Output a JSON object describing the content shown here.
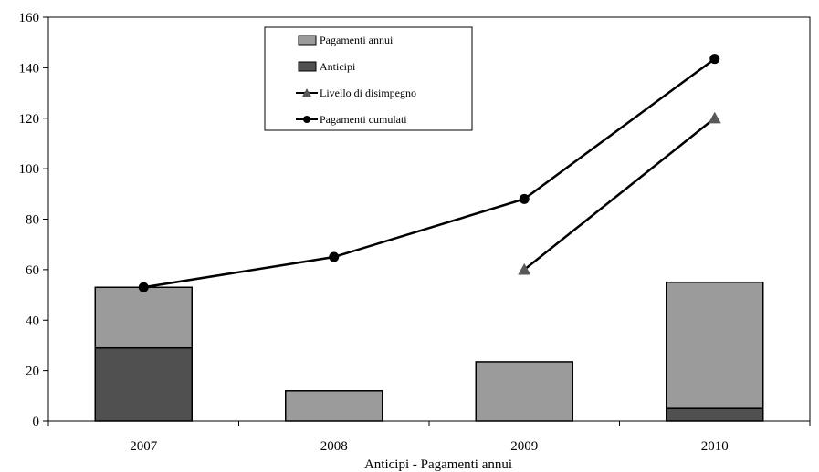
{
  "chart_data": {
    "type": "bar",
    "xlabel": "Anticipi  - Pagamenti annui",
    "ylabel": "",
    "ylim": [
      0,
      160
    ],
    "yticks": [
      0,
      20,
      40,
      60,
      80,
      100,
      120,
      140,
      160
    ],
    "categories": [
      "2007",
      "2008",
      "2009",
      "2010"
    ],
    "stacked_bars": [
      {
        "name": "Anticipi",
        "color": "#505050",
        "values": [
          29,
          0,
          0,
          5
        ]
      },
      {
        "name": "Pagamenti annui",
        "color": "#9b9b9b",
        "values": [
          24,
          12,
          23.5,
          50
        ]
      }
    ],
    "lines": [
      {
        "name": "Livello di disimpegno",
        "marker": "triangle",
        "color": "#000000",
        "marker_color": "#595959",
        "values": [
          null,
          null,
          60,
          120
        ]
      },
      {
        "name": "Pagamenti cumulati",
        "marker": "circle",
        "color": "#000000",
        "marker_color": "#000000",
        "values": [
          53,
          65,
          88,
          143.5
        ]
      }
    ],
    "legend": {
      "placement": "top-center",
      "entries": [
        {
          "label": "Pagamenti annui",
          "kind": "box",
          "color": "#9b9b9b"
        },
        {
          "label": "Anticipi",
          "kind": "box",
          "color": "#505050"
        },
        {
          "label": "Livello di disimpegno",
          "kind": "line-triangle",
          "color": "#000000"
        },
        {
          "label": "Pagamenti cumulati",
          "kind": "line-circle",
          "color": "#000000"
        }
      ]
    },
    "grid": false
  }
}
